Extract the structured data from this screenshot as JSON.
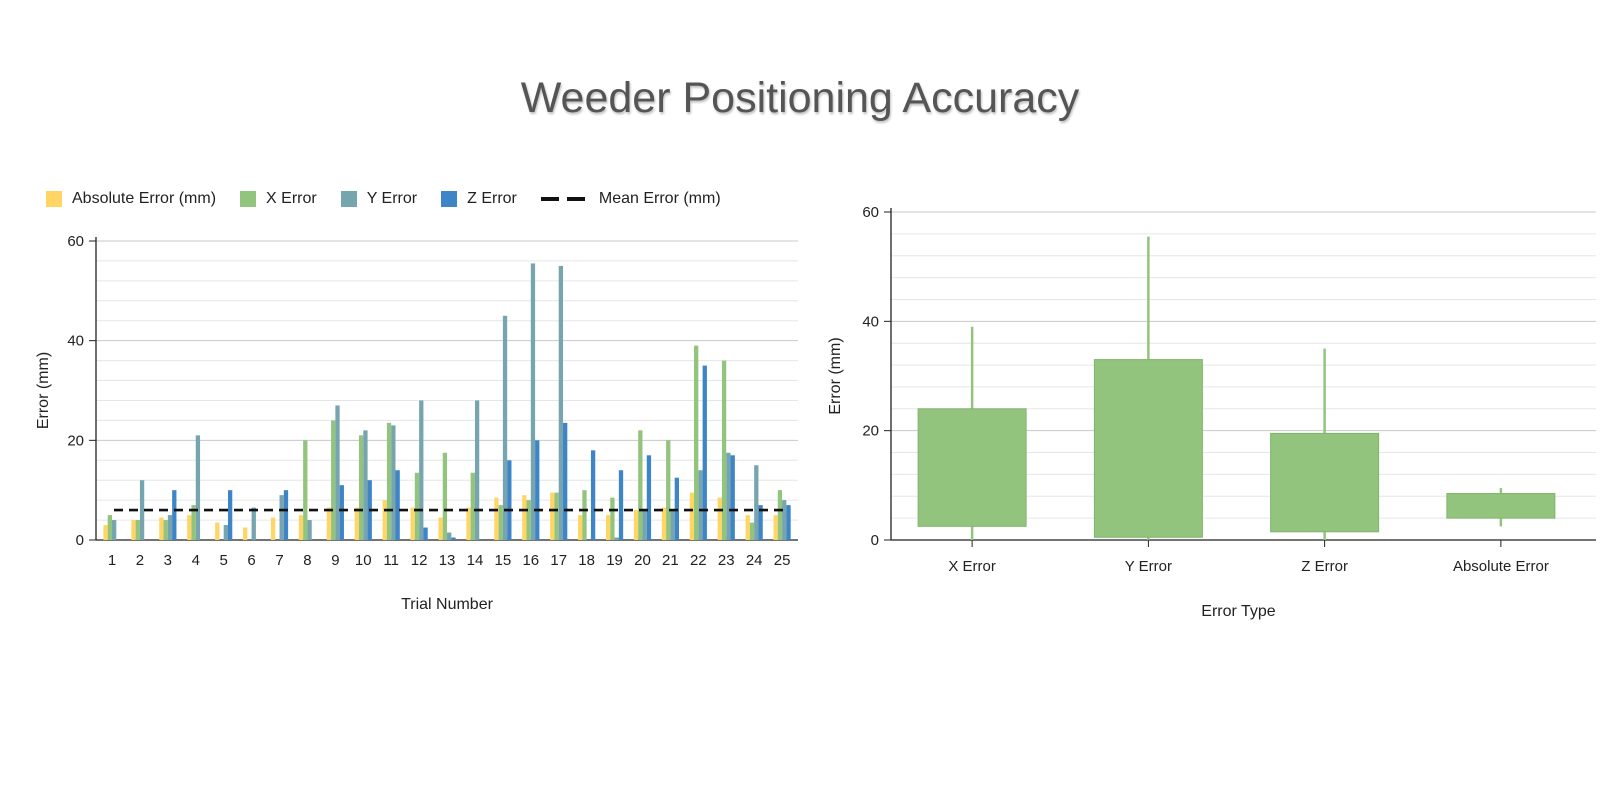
{
  "title": "Weeder Positioning Accuracy",
  "colors": {
    "absolute": "#ffd666",
    "x": "#93c47d",
    "y": "#76a5af",
    "z": "#3d85c6",
    "mean": "#111111",
    "box": "#93c47d"
  },
  "chart_data": [
    {
      "type": "bar",
      "title": "",
      "xlabel": "Trial Number",
      "ylabel": "Error (mm)",
      "ylim": [
        0,
        60
      ],
      "yticks": [
        0,
        20,
        40,
        60
      ],
      "grid": true,
      "legend_position": "top",
      "categories": [
        "1",
        "2",
        "3",
        "4",
        "5",
        "6",
        "7",
        "8",
        "9",
        "10",
        "11",
        "12",
        "13",
        "14",
        "15",
        "16",
        "17",
        "18",
        "19",
        "20",
        "21",
        "22",
        "23",
        "24",
        "25"
      ],
      "series": [
        {
          "name": "Absolute Error (mm)",
          "color_key": "absolute",
          "values": [
            3,
            4,
            4.5,
            5,
            3.5,
            2.5,
            4.5,
            5,
            6.5,
            6.5,
            8,
            6.5,
            4.5,
            6.5,
            8.5,
            9,
            9.5,
            5,
            5,
            6,
            6.5,
            9.5,
            8.5,
            5,
            5
          ]
        },
        {
          "name": "X Error",
          "color_key": "x",
          "values": [
            5,
            4,
            4,
            7,
            0,
            0,
            0,
            20,
            24,
            21,
            23.5,
            13.5,
            17.5,
            13.5,
            7,
            8,
            9.5,
            10,
            8.5,
            22,
            20,
            39,
            36,
            3.5,
            10
          ]
        },
        {
          "name": "Y Error",
          "color_key": "y",
          "values": [
            4,
            12,
            5,
            21,
            3,
            6.5,
            9,
            4,
            27,
            22,
            23,
            28,
            1.5,
            28,
            45,
            55.5,
            55,
            0,
            0.5,
            6,
            6,
            14,
            17.5,
            15,
            8
          ]
        },
        {
          "name": "Z Error",
          "color_key": "z",
          "values": [
            0,
            0,
            10,
            0,
            10,
            0,
            10,
            0,
            11,
            12,
            14,
            2.5,
            0.5,
            0,
            16,
            20,
            23.5,
            18,
            14,
            17,
            12.5,
            35,
            17,
            7,
            7
          ]
        }
      ],
      "reference_line": {
        "name": "Mean Error (mm)",
        "value": 6
      }
    },
    {
      "type": "box",
      "title": "",
      "xlabel": "Error Type",
      "ylabel": "Error (mm)",
      "ylim": [
        0,
        60
      ],
      "yticks": [
        0,
        20,
        40,
        60
      ],
      "grid": true,
      "categories": [
        "X Error",
        "Y Error",
        "Z Error",
        "Absolute Error"
      ],
      "boxes": [
        {
          "min": 0,
          "q1": 2.5,
          "q3": 24,
          "max": 39
        },
        {
          "min": 0,
          "q1": 0.5,
          "q3": 33,
          "max": 55.5
        },
        {
          "min": 0,
          "q1": 1.5,
          "q3": 19.5,
          "max": 35
        },
        {
          "min": 2.5,
          "q1": 4,
          "q3": 8.5,
          "max": 9.5
        }
      ]
    }
  ]
}
